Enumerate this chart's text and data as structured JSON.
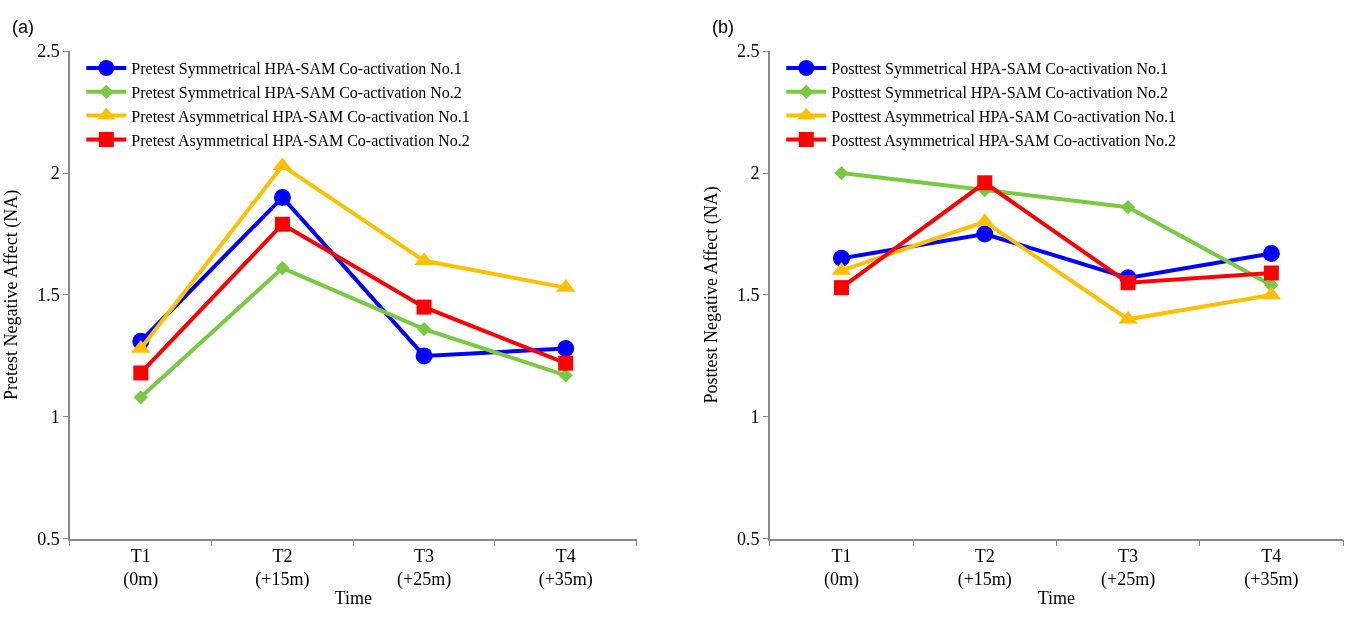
{
  "chart_data": [
    {
      "type": "line",
      "title": "(a)",
      "xlabel": "Time",
      "ylabel": "Pretest Negative Affect (NA)",
      "categories": [
        "T1\n(0m)",
        "T2\n(+15m)",
        "T3\n(+25m)",
        "T4\n(+35m)"
      ],
      "ylim": [
        0.5,
        2.5
      ],
      "yticks": [
        0.5,
        1,
        1.5,
        2,
        2.5
      ],
      "legend": "top left",
      "series": [
        {
          "name": "Pretest Symmetrical HPA-SAM Co-activation No.1",
          "color": "#0000ff",
          "marker": "circle",
          "values": [
            1.31,
            1.9,
            1.25,
            1.28
          ]
        },
        {
          "name": "Pretest Symmetrical HPA-SAM Co-activation No.2",
          "color": "#7ac943",
          "marker": "diamond",
          "values": [
            1.08,
            1.61,
            1.36,
            1.17
          ]
        },
        {
          "name": "Pretest Asymmetrical HPA-SAM Co-activation No.1",
          "color": "#ffc000",
          "marker": "triangle",
          "values": [
            1.28,
            2.03,
            1.64,
            1.53
          ]
        },
        {
          "name": "Pretest Asymmetrical HPA-SAM Co-activation No.2",
          "color": "#ff0000",
          "marker": "square",
          "values": [
            1.18,
            1.79,
            1.45,
            1.22
          ]
        }
      ]
    },
    {
      "type": "line",
      "title": "(b)",
      "xlabel": "Time",
      "ylabel": "Posttest Negative Affect (NA)",
      "categories": [
        "T1\n(0m)",
        "T2\n(+15m)",
        "T3\n(+25m)",
        "T4\n(+35m)"
      ],
      "ylim": [
        0.5,
        2.5
      ],
      "yticks": [
        0.5,
        1,
        1.5,
        2,
        2.5
      ],
      "legend": "top left",
      "series": [
        {
          "name": "Posttest Symmetrical HPA-SAM Co-activation No.1",
          "color": "#0000ff",
          "marker": "circle",
          "values": [
            1.65,
            1.75,
            1.57,
            1.67
          ]
        },
        {
          "name": "Posttest Symmetrical HPA-SAM Co-activation No.2",
          "color": "#7ac943",
          "marker": "diamond",
          "values": [
            2.0,
            1.93,
            1.86,
            1.54
          ]
        },
        {
          "name": "Posttest Asymmetrical HPA-SAM Co-activation No.1",
          "color": "#ffc000",
          "marker": "triangle",
          "values": [
            1.6,
            1.8,
            1.4,
            1.5
          ]
        },
        {
          "name": "Posttest Asymmetrical HPA-SAM Co-activation No.2",
          "color": "#ff0000",
          "marker": "square",
          "values": [
            1.53,
            1.96,
            1.55,
            1.59
          ]
        }
      ]
    }
  ]
}
